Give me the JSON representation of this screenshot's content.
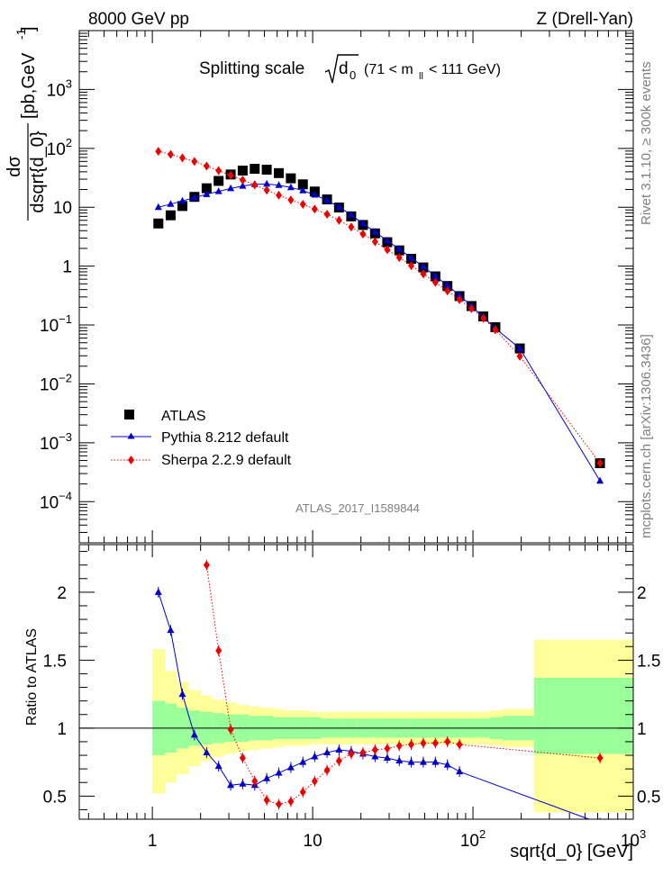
{
  "header": {
    "left": "8000 GeV pp",
    "right": "Z (Drell-Yan)"
  },
  "title": {
    "prefix": "Splitting scale",
    "sqrt_symbol": "d",
    "sqrt_sub": "0",
    "range_open": "(71 < m",
    "range_sub": "ll",
    "range_close": "< 111 GeV)"
  },
  "side_labels": {
    "rivet": "Rivet 3.1.10, ≥ 300k events",
    "mcplots": "mcplots.cern.ch [arXiv:1306.3436]"
  },
  "analysis_id": "ATLAS_2017_I1589844",
  "chart_data": [
    {
      "type": "scatter",
      "panel": "main",
      "ylabel": "dσ / dsqrt{d_0} [pb,GeV⁻¹]",
      "ylabel_num": "dσ",
      "ylabel_den": "dsqrt{d_0}",
      "ylabel_unit": "[pb,GeV",
      "ylabel_unit_exp": "-1",
      "ylabel_unit_close": "]",
      "xscale": "log",
      "yscale": "log",
      "xlim": [
        0.35,
        1000
      ],
      "ylim": [
        2e-05,
        10000
      ],
      "x_ticks": [
        {
          "value": 1,
          "label": "1"
        },
        {
          "value": 10,
          "label": "10"
        },
        {
          "value": 100,
          "label": "10",
          "exp": "2"
        },
        {
          "value": 1000,
          "label": "10",
          "exp": "3"
        }
      ],
      "y_ticks": [
        {
          "value": 1000,
          "label": "10",
          "exp": "3"
        },
        {
          "value": 100,
          "label": "10",
          "exp": "2"
        },
        {
          "value": 10,
          "label": "10"
        },
        {
          "value": 1,
          "label": "1"
        },
        {
          "value": 0.1,
          "label": "10",
          "exp": "−1"
        },
        {
          "value": 0.01,
          "label": "10",
          "exp": "−2"
        },
        {
          "value": 0.001,
          "label": "10",
          "exp": "−3"
        },
        {
          "value": 0.0001,
          "label": "10",
          "exp": "−4"
        }
      ],
      "legend_position": "bottom-left",
      "series": [
        {
          "name": "ATLAS",
          "marker": "square",
          "color": "#000000",
          "x": [
            1.09,
            1.3,
            1.54,
            1.83,
            2.18,
            2.59,
            3.08,
            3.66,
            4.35,
            5.17,
            6.15,
            7.31,
            8.69,
            10.3,
            12.3,
            14.6,
            17.4,
            20.6,
            24.5,
            29.2,
            34.7,
            41.2,
            49.0,
            58.3,
            69.3,
            82.4,
            97.9,
            116,
            138,
            196,
            620
          ],
          "y": [
            5.3,
            7.3,
            10.5,
            15.0,
            21.0,
            28.0,
            36.0,
            42.0,
            45.0,
            43.5,
            38.0,
            31.0,
            24.5,
            18.5,
            13.6,
            9.9,
            7.0,
            5.0,
            3.6,
            2.55,
            1.85,
            1.33,
            0.95,
            0.67,
            0.46,
            0.31,
            0.21,
            0.14,
            0.092,
            0.04,
            0.00045
          ]
        },
        {
          "name": "Pythia 8.212 default",
          "marker": "triangle",
          "color": "#0000cc",
          "line": "solid",
          "x": [
            1.09,
            1.3,
            1.54,
            1.83,
            2.18,
            2.59,
            3.08,
            3.66,
            4.35,
            5.17,
            6.15,
            7.31,
            8.69,
            10.3,
            12.3,
            14.6,
            17.4,
            20.6,
            24.5,
            29.2,
            34.7,
            41.2,
            49.0,
            58.3,
            69.3,
            82.4,
            97.9,
            116,
            138,
            196,
            620
          ],
          "y": [
            10.0,
            11.3,
            12.8,
            14.6,
            16.6,
            18.6,
            20.8,
            23.0,
            24.5,
            24.8,
            23.7,
            21.7,
            19.2,
            16.2,
            13.1,
            10.1,
            7.4,
            5.3,
            3.8,
            2.7,
            1.95,
            1.38,
            0.98,
            0.68,
            0.47,
            0.32,
            0.21,
            0.136,
            0.088,
            0.04,
            0.000225
          ]
        },
        {
          "name": "Sherpa 2.2.9 default",
          "marker": "diamond",
          "color": "#ee0000",
          "line": "dotted",
          "x": [
            1.09,
            1.3,
            1.54,
            1.83,
            2.18,
            2.59,
            3.08,
            3.66,
            4.35,
            5.17,
            6.15,
            7.31,
            8.69,
            10.3,
            12.3,
            14.6,
            17.4,
            20.6,
            24.5,
            29.2,
            34.7,
            41.2,
            49.0,
            58.3,
            69.3,
            82.4,
            97.9,
            116,
            138,
            196,
            620
          ],
          "y": [
            89.0,
            79.0,
            69.0,
            60.0,
            50.0,
            42.0,
            35.0,
            29.0,
            24.0,
            19.5,
            16.0,
            13.3,
            11.2,
            9.3,
            7.6,
            6.0,
            4.6,
            3.5,
            2.6,
            1.9,
            1.4,
            1.02,
            0.74,
            0.53,
            0.38,
            0.27,
            0.19,
            0.13,
            0.083,
            0.0295,
            0.00045
          ]
        }
      ]
    },
    {
      "type": "scatter",
      "panel": "ratio",
      "ylabel": "Ratio to ATLAS",
      "xlabel": "sqrt{d_0} [GeV]",
      "xscale": "log",
      "xlim": [
        0.35,
        1000
      ],
      "ylim": [
        0.33,
        2.35
      ],
      "y_ticks": [
        {
          "value": 2,
          "label": "2"
        },
        {
          "value": 1.5,
          "label": "1.5"
        },
        {
          "value": 1,
          "label": "1"
        },
        {
          "value": 0.5,
          "label": "0.5"
        }
      ],
      "reference_line": 1,
      "bands": {
        "bin_edges": [
          1.0,
          1.2,
          1.42,
          1.68,
          2.0,
          2.38,
          2.83,
          3.36,
          4.0,
          4.75,
          5.65,
          6.72,
          8.0,
          9.5,
          11.3,
          13.4,
          16.0,
          19.0,
          22.6,
          26.9,
          32.0,
          38.0,
          45.2,
          53.7,
          63.9,
          76.0,
          90.4,
          107.5,
          127.8,
          152,
          240,
          1000
        ],
        "inner_lo": [
          0.8,
          0.82,
          0.85,
          0.87,
          0.88,
          0.89,
          0.9,
          0.9,
          0.91,
          0.91,
          0.92,
          0.92,
          0.92,
          0.92,
          0.93,
          0.93,
          0.93,
          0.93,
          0.93,
          0.93,
          0.93,
          0.93,
          0.93,
          0.93,
          0.93,
          0.93,
          0.93,
          0.93,
          0.92,
          0.91,
          0.81
        ],
        "inner_hi": [
          1.2,
          1.18,
          1.15,
          1.13,
          1.12,
          1.11,
          1.1,
          1.1,
          1.09,
          1.09,
          1.08,
          1.08,
          1.08,
          1.08,
          1.07,
          1.07,
          1.07,
          1.07,
          1.07,
          1.07,
          1.07,
          1.07,
          1.07,
          1.07,
          1.07,
          1.07,
          1.07,
          1.07,
          1.08,
          1.09,
          1.37
        ],
        "outer_lo": [
          0.52,
          0.6,
          0.66,
          0.72,
          0.76,
          0.79,
          0.81,
          0.83,
          0.84,
          0.85,
          0.86,
          0.87,
          0.87,
          0.88,
          0.88,
          0.88,
          0.88,
          0.88,
          0.88,
          0.88,
          0.88,
          0.88,
          0.88,
          0.88,
          0.88,
          0.88,
          0.88,
          0.88,
          0.87,
          0.86,
          0.38
        ],
        "outer_hi": [
          1.58,
          1.42,
          1.34,
          1.28,
          1.24,
          1.21,
          1.19,
          1.17,
          1.16,
          1.15,
          1.14,
          1.13,
          1.13,
          1.12,
          1.12,
          1.12,
          1.12,
          1.12,
          1.12,
          1.12,
          1.12,
          1.12,
          1.12,
          1.12,
          1.12,
          1.12,
          1.12,
          1.12,
          1.13,
          1.14,
          1.65
        ],
        "inner_color": "#99ff99",
        "outer_color": "#ffff99"
      },
      "series": [
        {
          "name": "Pythia 8.212 default",
          "marker": "triangle",
          "color": "#0000cc",
          "line": "solid",
          "x": [
            1.09,
            1.3,
            1.54,
            1.83,
            2.18,
            2.59,
            3.08,
            3.66,
            4.35,
            5.17,
            6.15,
            7.31,
            8.69,
            10.3,
            12.3,
            14.6,
            17.4,
            20.6,
            24.5,
            29.2,
            34.7,
            41.2,
            49.0,
            58.3,
            69.3,
            82.4,
            620
          ],
          "y": [
            2.0,
            1.72,
            1.25,
            0.95,
            0.82,
            0.72,
            0.58,
            0.59,
            0.58,
            0.63,
            0.67,
            0.71,
            0.75,
            0.79,
            0.82,
            0.84,
            0.83,
            0.81,
            0.79,
            0.78,
            0.76,
            0.75,
            0.75,
            0.75,
            0.73,
            0.68,
            0.3
          ]
        },
        {
          "name": "Sherpa 2.2.9 default",
          "marker": "diamond",
          "color": "#ee0000",
          "line": "dotted",
          "x": [
            2.18,
            2.59,
            3.08,
            3.66,
            4.35,
            5.17,
            6.15,
            7.31,
            8.69,
            10.3,
            12.3,
            14.6,
            17.4,
            20.6,
            24.5,
            29.2,
            34.7,
            41.2,
            49.0,
            58.3,
            69.3,
            82.4,
            620
          ],
          "y": [
            2.2,
            1.57,
            0.99,
            0.78,
            0.61,
            0.47,
            0.44,
            0.46,
            0.53,
            0.61,
            0.69,
            0.76,
            0.81,
            0.82,
            0.84,
            0.85,
            0.87,
            0.88,
            0.89,
            0.89,
            0.9,
            0.88,
            0.78
          ]
        }
      ]
    }
  ]
}
